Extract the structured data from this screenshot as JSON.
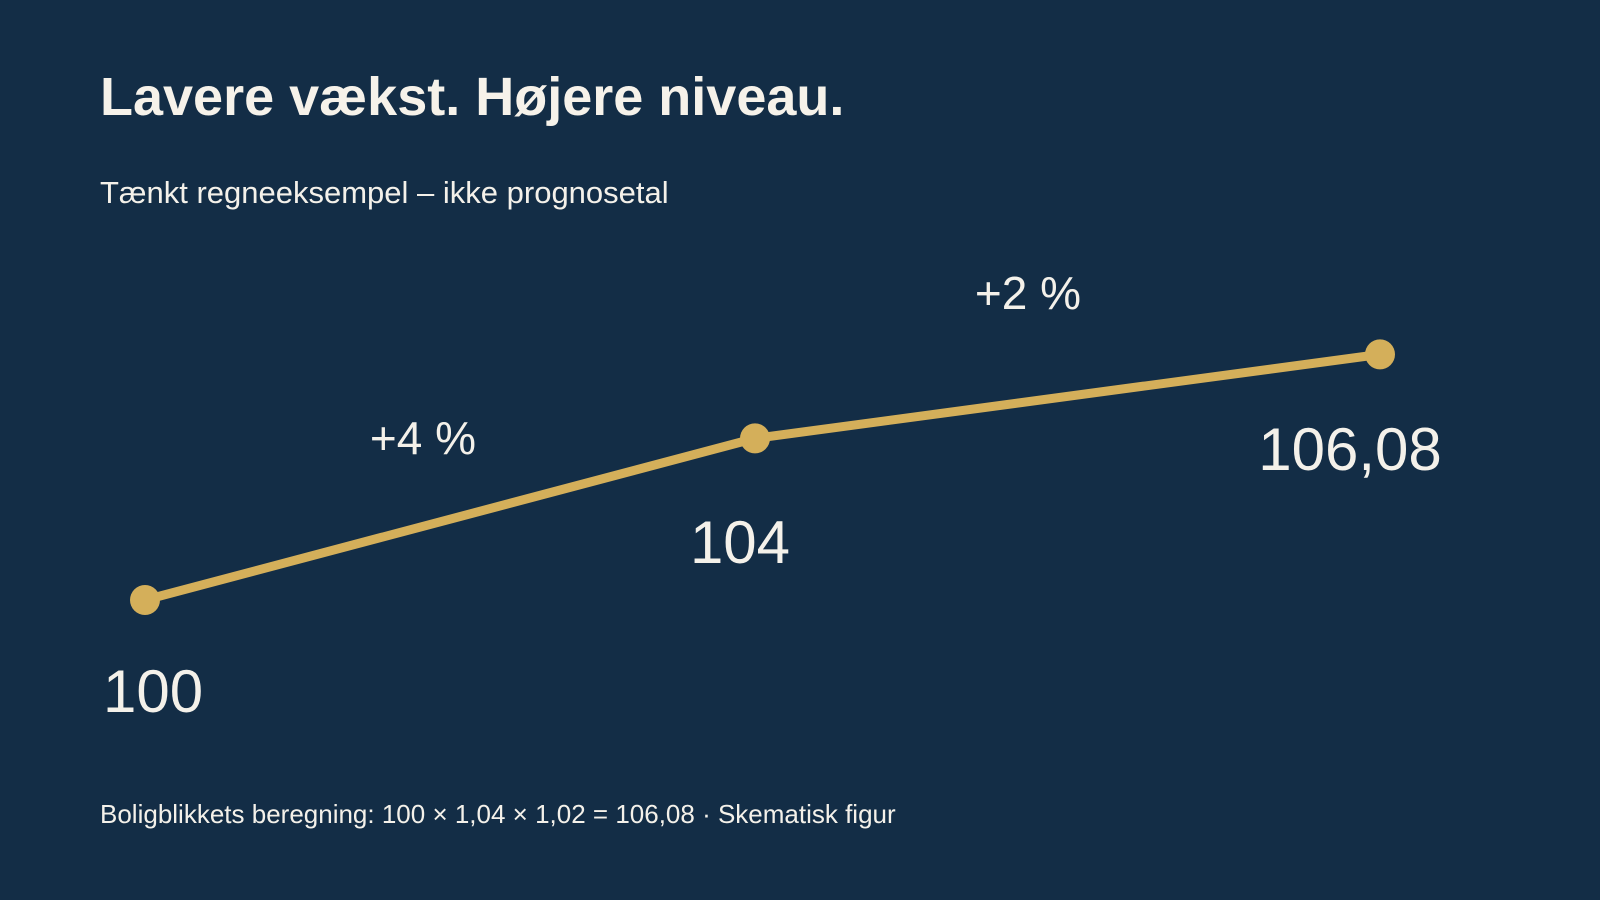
{
  "slide": {
    "title": "Lavere vækst. Højere niveau.",
    "subtitle": "Tænkt regneeksempel – ikke prognosetal",
    "footer": "Boligblikkets beregning: 100 × 1,04 × 1,02 = 106,08 · Skematisk figur"
  },
  "colors": {
    "background": "#132d46",
    "text": "#f4f1ea",
    "line": "#d4af5a"
  },
  "chart_data": {
    "type": "line",
    "title": "Lavere vækst. Højere niveau.",
    "subtitle": "Tænkt regneeksempel – ikke prognosetal",
    "x": [
      0,
      1,
      2
    ],
    "values": [
      100,
      104,
      106.08
    ],
    "point_labels": [
      "100",
      "104",
      "106,08"
    ],
    "segment_labels": [
      "+4 %",
      "+2 %"
    ],
    "xlabel": "",
    "ylabel": "",
    "grid": false,
    "legend": "none"
  }
}
